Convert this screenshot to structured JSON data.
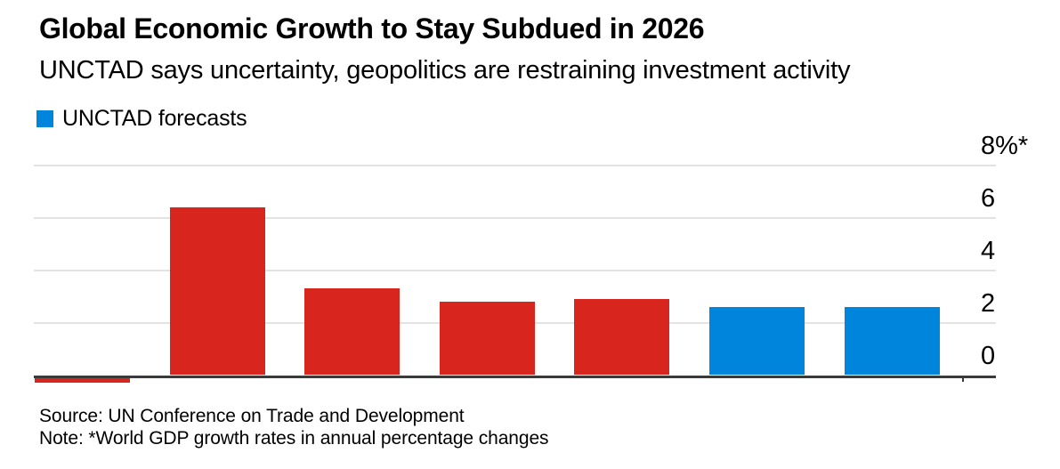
{
  "header": {
    "title": "Global Economic Growth to Stay Subdued in 2026",
    "subtitle": "UNCTAD says uncertainty, geopolitics are restraining investment activity"
  },
  "legend": {
    "label": "UNCTAD forecasts",
    "swatch_color": "#0085dc"
  },
  "footer": {
    "source": "Source: UN Conference on Trade and Development",
    "note": "Note: *World GDP growth rates in annual percentage changes"
  },
  "colors": {
    "historical_bar": "#d8261f",
    "forecast_bar": "#0085dc",
    "axis_line": "#3a3a3a",
    "gridline": "#e3e3e3",
    "text": "#000000",
    "background": "#ffffff"
  },
  "chart_data": {
    "type": "bar",
    "title": "Global Economic Growth to Stay Subdued in 2026",
    "subtitle": "UNCTAD says uncertainty, geopolitics are restraining investment activity",
    "unit": "percent",
    "grid": "horizontal",
    "legend_position": "top-left",
    "legend_entries": [
      {
        "label": "UNCTAD forecasts",
        "color": "#0085dc"
      }
    ],
    "y_axis": {
      "side": "right",
      "ticks_top_down": [
        8,
        6,
        4,
        2,
        0
      ],
      "tick_labels_top_down": [
        "8%*",
        "6",
        "4",
        "2",
        "0"
      ],
      "ylim_drawn": [
        -0.3,
        8.3
      ]
    },
    "x_axis": {
      "labels_shown": false,
      "categories": [
        "",
        "",
        "",
        "",
        "",
        "",
        ""
      ]
    },
    "bars": [
      {
        "value": -0.3,
        "series": "historical",
        "clipped_below_axis": true
      },
      {
        "value": 6.4,
        "series": "historical"
      },
      {
        "value": 3.3,
        "series": "historical"
      },
      {
        "value": 2.8,
        "series": "historical"
      },
      {
        "value": 2.9,
        "series": "historical"
      },
      {
        "value": 2.6,
        "series": "forecast"
      },
      {
        "value": 2.6,
        "series": "forecast"
      }
    ],
    "series": [
      {
        "key": "historical",
        "color": "#d8261f",
        "legend_label_shown": ""
      },
      {
        "key": "forecast",
        "color": "#0085dc",
        "legend_label_shown": "UNCTAD forecasts"
      }
    ]
  }
}
